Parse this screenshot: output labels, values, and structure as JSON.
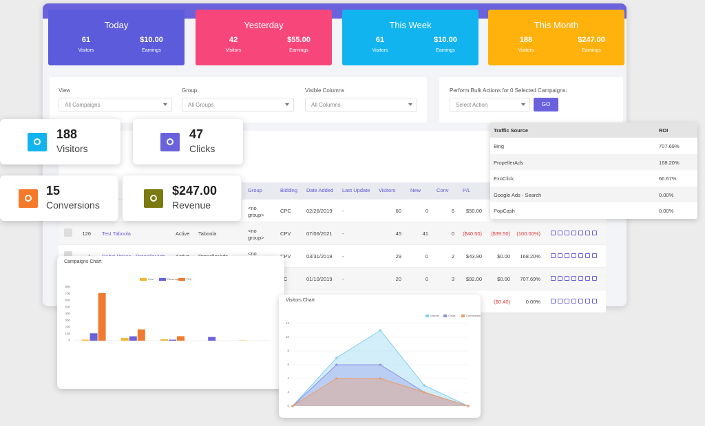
{
  "stats": [
    {
      "title": "Today",
      "visitors": "61",
      "visitors_label": "Visitors",
      "earnings": "$10.00",
      "earnings_label": "Earnings"
    },
    {
      "title": "Yesterday",
      "visitors": "42",
      "visitors_label": "Visitors",
      "earnings": "$55.00",
      "earnings_label": "Earnings"
    },
    {
      "title": "This Week",
      "visitors": "61",
      "visitors_label": "Visitors",
      "earnings": "$10.00",
      "earnings_label": "Earnings"
    },
    {
      "title": "This Month",
      "visitors": "188",
      "visitors_label": "Visitors",
      "earnings": "$247.00",
      "earnings_label": "Earnings"
    }
  ],
  "filters": {
    "view_label": "View",
    "view_value": "All Campaigns",
    "group_label": "Group",
    "group_value": "All Groups",
    "columns_label": "Visible Columns",
    "columns_value": "All Columns",
    "bulk_label": "Perform Bulk Actions for 0 Selected Campaigns:",
    "bulk_value": "Select Action",
    "go": "GO"
  },
  "kpis": [
    {
      "value": "188",
      "label": "Visitors"
    },
    {
      "value": "47",
      "label": "Clicks"
    },
    {
      "value": "15",
      "label": "Conversions"
    },
    {
      "value": "$247.00",
      "label": "Revenue"
    }
  ],
  "campaigns_table": {
    "headers": {
      "group": "Group",
      "bidding": "Bidding",
      "added": "Date Added",
      "update": "Last Update",
      "visitors": "Visitors",
      "new": "New",
      "conv": "Conv",
      "pl": "P/L"
    },
    "rows": [
      {
        "group": "<no group>",
        "bidding": "CPC",
        "added": "02/26/2019",
        "update": "-",
        "visitors": "60",
        "new": "0",
        "conv": "6",
        "pl": "$50.00"
      },
      {
        "id": "126",
        "name": "Test Taboola",
        "status": "Active",
        "source": "Taboola",
        "group": "<no group>",
        "bidding": "CPV",
        "added": "07/06/2021",
        "update": "-",
        "visitors": "45",
        "new": "41",
        "conv": "0",
        "pl": "($40.50)",
        "profit": "($39.50)",
        "roi": "(100.00%)"
      },
      {
        "id": "1",
        "name": "Dubai Prices - PropellerAds",
        "status": "Active",
        "source": "PropellerAds",
        "group": "<no group>",
        "bidding": "CPV",
        "added": "03/31/2019",
        "update": "-",
        "visitors": "29",
        "new": "0",
        "conv": "2",
        "pl": "$43.90",
        "profit": "$0.00",
        "roi": "168.20%"
      },
      {
        "bidding": "PC",
        "added": "01/10/2019",
        "update": "-",
        "visitors": "20",
        "new": "0",
        "conv": "3",
        "pl": "$92.00",
        "profit": "$0.00",
        "roi": "707.69%"
      },
      {
        "profit": "($0.40)",
        "roi": "0.00%"
      }
    ]
  },
  "traffic_sources": {
    "headers": [
      "Traffic Source",
      "ROI"
    ],
    "rows": [
      [
        "Bing",
        "707.69%"
      ],
      [
        "PropellerAds",
        "168.20%"
      ],
      [
        "ExoClick",
        "66.67%"
      ],
      [
        "Google Ads - Search",
        "0.00%"
      ],
      [
        "PopCash",
        "0.00%"
      ]
    ]
  },
  "chart_data": [
    {
      "type": "bar",
      "title": "Campaigns Chart",
      "categories": [
        null,
        null,
        null,
        null,
        null
      ],
      "series": [
        {
          "name": "Cost",
          "color": "#f5b731",
          "values": [
            15,
            40.5,
            20,
            0,
            5
          ]
        },
        {
          "name": "Revenue",
          "color": "#6b63d9",
          "values": [
            110,
            65,
            15,
            55,
            0
          ]
        },
        {
          "name": "ROI",
          "color": "#f07a2e",
          "values": [
            707.69,
            168.2,
            66.67,
            0,
            0
          ]
        }
      ],
      "ylim": [
        0,
        800
      ],
      "yticks": [
        0,
        100,
        200,
        300,
        400,
        500,
        600,
        700,
        800
      ],
      "grid": false
    },
    {
      "type": "area",
      "title": "Visitors Chart",
      "categories": [
        null,
        null,
        null,
        null,
        null
      ],
      "series": [
        {
          "name": "Visitors",
          "color": "#7fcdee",
          "values": [
            0,
            7,
            11,
            3,
            0
          ]
        },
        {
          "name": "Clicks",
          "color": "#8f8fe6",
          "values": [
            0,
            6,
            6,
            2,
            0
          ]
        },
        {
          "name": "Conversions",
          "color": "#f09a62",
          "values": [
            0,
            4,
            4,
            2,
            0
          ]
        }
      ],
      "ylim": [
        0,
        12
      ],
      "yticks": [
        0,
        2,
        4,
        6,
        8,
        10,
        12
      ],
      "grid": true
    }
  ]
}
